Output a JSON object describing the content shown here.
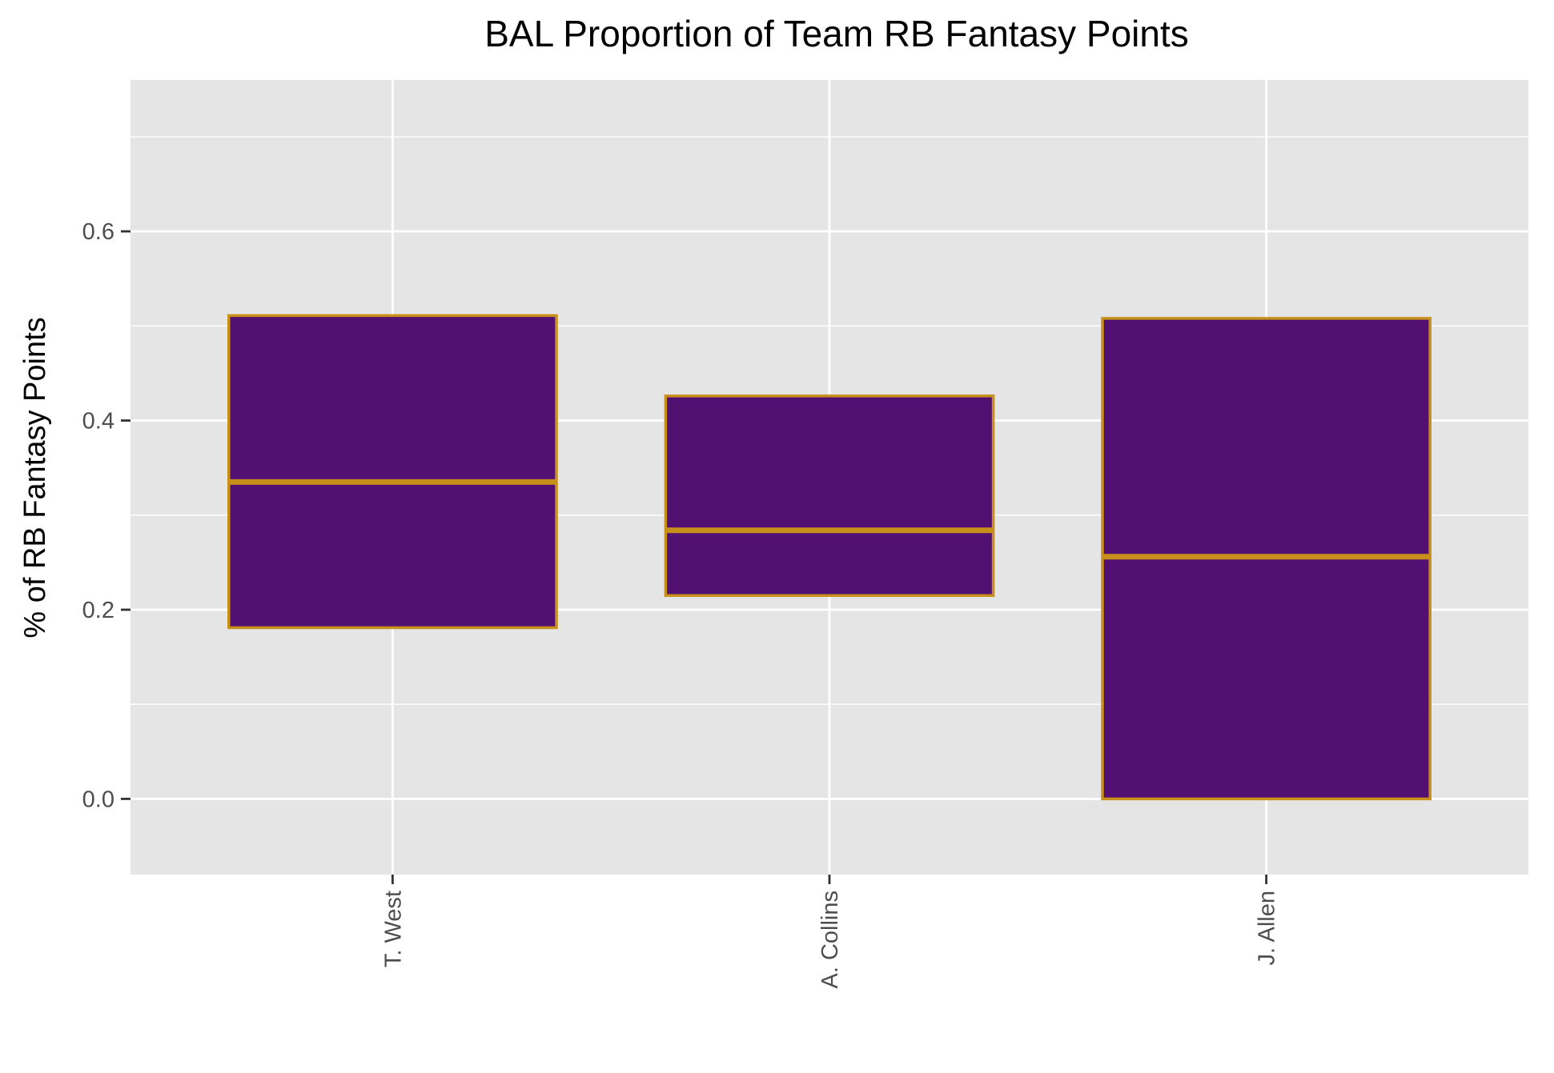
{
  "chart_data": {
    "type": "boxplot",
    "title": "BAL Proportion of Team RB Fantasy Points",
    "xlabel": "",
    "ylabel": "% of RB Fantasy Points",
    "categories": [
      "T. West",
      "A. Collins",
      "J. Allen"
    ],
    "boxes": [
      {
        "name": "T. West",
        "q1": 0.181,
        "median": 0.335,
        "q3": 0.511
      },
      {
        "name": "A. Collins",
        "q1": 0.215,
        "median": 0.284,
        "q3": 0.426
      },
      {
        "name": "J. Allen",
        "q1": 0.0,
        "median": 0.256,
        "q3": 0.508
      }
    ],
    "ylim": [
      -0.08,
      0.76
    ],
    "yticks": [
      0.0,
      0.2,
      0.4,
      0.6
    ],
    "ytick_labels": [
      "0.0",
      "0.2",
      "0.4",
      "0.6"
    ],
    "grid": true,
    "colors": {
      "panel_background": "#e5e5e5",
      "grid": "#ffffff",
      "box_fill": "#531073",
      "box_stroke": "#c8901a",
      "tick": "#333333"
    }
  }
}
